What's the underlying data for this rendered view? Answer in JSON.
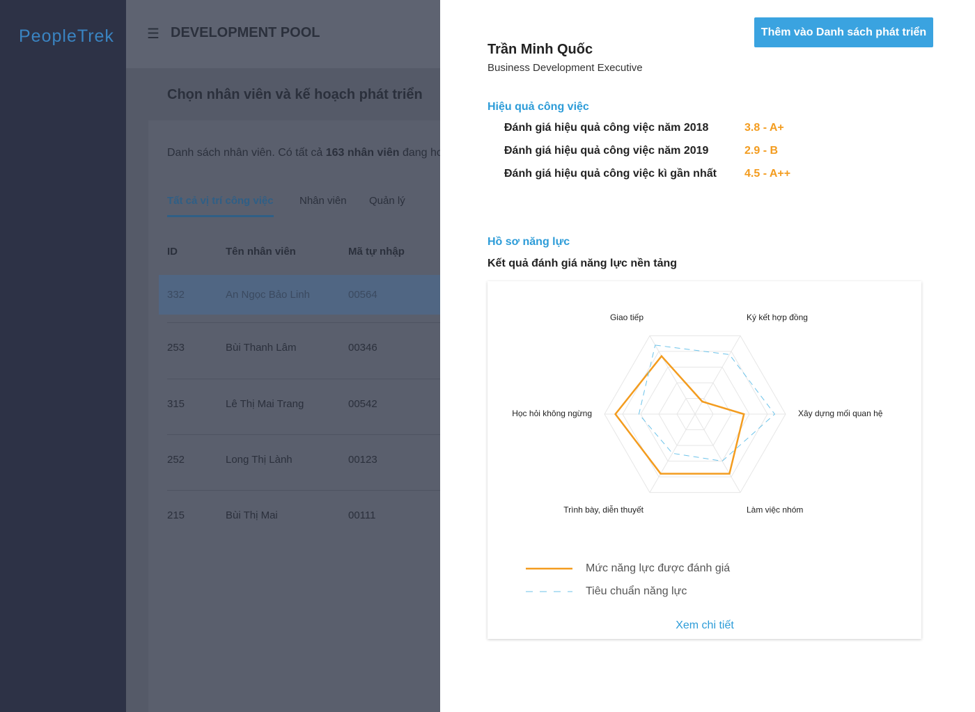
{
  "sidebar": {
    "logo": "PeopleTrek"
  },
  "header": {
    "title": "DEVELOPMENT POOL"
  },
  "page": {
    "heading": "Chọn nhân viên và kế hoạch phát triển",
    "summary": {
      "text": "Danh sách nhân viên. Có tất cả",
      "count": "163 nhân viên",
      "rest": "đang ho"
    },
    "tabs": [
      "Tất cả vị trí công việc",
      "Nhân viên",
      "Quản lý"
    ]
  },
  "table": {
    "columns": [
      "ID",
      "Tên nhân viên",
      "Mã tự nhập"
    ],
    "rows": [
      [
        "332",
        "An Ngọc Bảo Linh",
        "00564"
      ],
      [
        "253",
        "Bùi Thanh Lâm",
        "00346"
      ],
      [
        "315",
        "Lê Thị Mai Trang",
        "00542"
      ],
      [
        "252",
        "Long Thị Lành",
        "00123"
      ],
      [
        "215",
        "Bùi Thị Mai",
        "00111"
      ]
    ]
  },
  "panel": {
    "button": "Thêm vào Danh sách phát triển",
    "name": "Trần Minh Quốc",
    "role": "Business Development Executive",
    "performance": {
      "title": "Hiệu quả công việc",
      "items": [
        {
          "label": "Đánh giá hiệu quả công việc năm 2018",
          "score": "3.8 - A+"
        },
        {
          "label": "Đánh giá hiệu quả công việc năm 2019",
          "score": "2.9 - B"
        },
        {
          "label": "Đánh giá hiệu quả công việc kì gần nhất",
          "score": "4.5 - A++"
        }
      ]
    },
    "profile": {
      "title": "Hồ sơ năng lực",
      "subtitle": "Kết quả đánh giá năng lực nền tảng"
    },
    "link": "Xem chi tiết"
  },
  "chart_data": {
    "type": "radar",
    "categories": [
      "Giao tiếp",
      "Ký kết hợp đồng",
      "Xây dựng mối quan hệ",
      "Làm việc nhóm",
      "Trình bày, diễn thuyết",
      "Học hỏi không ngừng"
    ],
    "series": [
      {
        "name": "Mức năng lực được đánh giá",
        "color": "#f39c1f",
        "line_style": "solid",
        "values": [
          3.7,
          0.8,
          2.7,
          3.8,
          3.8,
          4.4
        ]
      },
      {
        "name": "Tiêu chuẩn năng lực",
        "color": "#6cc3ea",
        "line_style": "dashed",
        "values": [
          4.4,
          3.8,
          4.4,
          3.0,
          2.5,
          3.1
        ]
      }
    ],
    "rlim": [
      0,
      5
    ],
    "rticks": [
      1,
      2,
      3,
      4,
      5
    ],
    "grid": true
  }
}
